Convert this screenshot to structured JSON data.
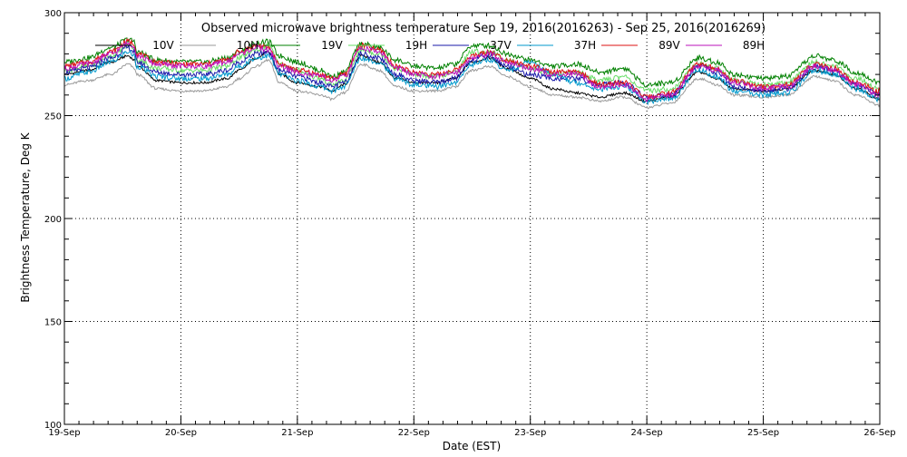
{
  "chart_data": {
    "type": "line",
    "title": "Observed microwave brightness temperature Sep 19, 2016(2016263) - Sep 25, 2016(2016269)",
    "xlabel": "Date (EST)",
    "ylabel": "Brightness Temperature, Deg K",
    "ylim": [
      100,
      300
    ],
    "xlim": [
      "19-Sep",
      "26-Sep"
    ],
    "yticks": [
      100,
      150,
      200,
      250,
      300
    ],
    "xticks": [
      "19-Sep",
      "20-Sep",
      "21-Sep",
      "22-Sep",
      "23-Sep",
      "24-Sep",
      "25-Sep",
      "26-Sep"
    ],
    "grid": true,
    "legend_position": "top",
    "x": [
      0.0,
      0.2,
      0.4,
      0.55,
      0.6,
      0.62,
      0.8,
      1.0,
      1.2,
      1.4,
      1.5,
      1.65,
      1.75,
      1.85,
      2.0,
      2.2,
      2.3,
      2.4,
      2.55,
      2.7,
      2.85,
      3.0,
      3.2,
      3.35,
      3.5,
      3.65,
      3.8,
      4.0,
      4.2,
      4.4,
      4.6,
      4.8,
      5.0,
      5.2,
      5.45,
      5.6,
      5.75,
      6.0,
      6.2,
      6.45,
      6.6,
      6.8,
      7.0
    ],
    "series": [
      {
        "name": "10V",
        "color": "#000000",
        "values": [
          270,
          272,
          276,
          279,
          277,
          274,
          267,
          266,
          266,
          268,
          272,
          278,
          281,
          270,
          266,
          264,
          262,
          265,
          279,
          276,
          268,
          266,
          266,
          268,
          276,
          278,
          273,
          268,
          263,
          261,
          259,
          261,
          257,
          259,
          271,
          268,
          263,
          262,
          263,
          272,
          270,
          263,
          258
        ]
      },
      {
        "name": "10H",
        "color": "#9a9a9a",
        "values": [
          265,
          267,
          270,
          275,
          273,
          270,
          263,
          262,
          262,
          264,
          268,
          274,
          277,
          266,
          262,
          260,
          258,
          261,
          275,
          272,
          264,
          262,
          262,
          264,
          272,
          274,
          269,
          264,
          260,
          259,
          257,
          259,
          254,
          256,
          268,
          265,
          260,
          259,
          260,
          269,
          267,
          260,
          255
        ]
      },
      {
        "name": "19V",
        "color": "#008000",
        "values": [
          276,
          278,
          283,
          287,
          286,
          281,
          277,
          276,
          276,
          278,
          281,
          285,
          286,
          279,
          276,
          272,
          269,
          271,
          285,
          283,
          277,
          274,
          273,
          275,
          284,
          284,
          280,
          277,
          274,
          275,
          271,
          273,
          265,
          266,
          278,
          276,
          270,
          268,
          269,
          279,
          277,
          271,
          266
        ]
      },
      {
        "name": "19H",
        "color": "#66dd66",
        "values": [
          272,
          274,
          279,
          284,
          283,
          277,
          273,
          272,
          272,
          274,
          278,
          282,
          284,
          275,
          272,
          268,
          265,
          267,
          282,
          280,
          273,
          270,
          269,
          271,
          281,
          281,
          277,
          273,
          270,
          271,
          267,
          269,
          262,
          263,
          275,
          273,
          267,
          265,
          266,
          276,
          274,
          268,
          263
        ]
      },
      {
        "name": "37V",
        "color": "#1a1aaa",
        "values": [
          271,
          273,
          278,
          283,
          281,
          276,
          271,
          270,
          270,
          272,
          276,
          280,
          281,
          272,
          269,
          266,
          264,
          266,
          280,
          278,
          270,
          267,
          266,
          268,
          277,
          279,
          274,
          270,
          268,
          268,
          265,
          266,
          259,
          260,
          274,
          271,
          264,
          262,
          263,
          274,
          272,
          265,
          260
        ]
      },
      {
        "name": "37H",
        "color": "#0099cc",
        "values": [
          268,
          271,
          276,
          281,
          279,
          274,
          269,
          268,
          268,
          270,
          274,
          278,
          279,
          270,
          267,
          264,
          262,
          264,
          278,
          276,
          268,
          265,
          264,
          266,
          275,
          277,
          272,
          276,
          270,
          266,
          263,
          264,
          257,
          258,
          272,
          269,
          262,
          260,
          261,
          272,
          270,
          263,
          258
        ]
      },
      {
        "name": "89V",
        "color": "#dd1111",
        "values": [
          274,
          276,
          281,
          286,
          285,
          280,
          276,
          275,
          275,
          277,
          281,
          284,
          283,
          275,
          272,
          270,
          268,
          270,
          284,
          282,
          274,
          271,
          270,
          272,
          279,
          281,
          277,
          274,
          271,
          271,
          265,
          266,
          259,
          261,
          275,
          273,
          267,
          264,
          265,
          275,
          273,
          266,
          262
        ]
      },
      {
        "name": "89H",
        "color": "#bb11bb",
        "values": [
          273,
          275,
          280,
          285,
          284,
          279,
          275,
          274,
          274,
          276,
          280,
          283,
          282,
          274,
          271,
          269,
          267,
          269,
          283,
          281,
          273,
          270,
          269,
          271,
          278,
          280,
          276,
          273,
          270,
          270,
          264,
          265,
          258,
          260,
          274,
          272,
          266,
          263,
          264,
          274,
          272,
          265,
          260
        ]
      }
    ]
  }
}
